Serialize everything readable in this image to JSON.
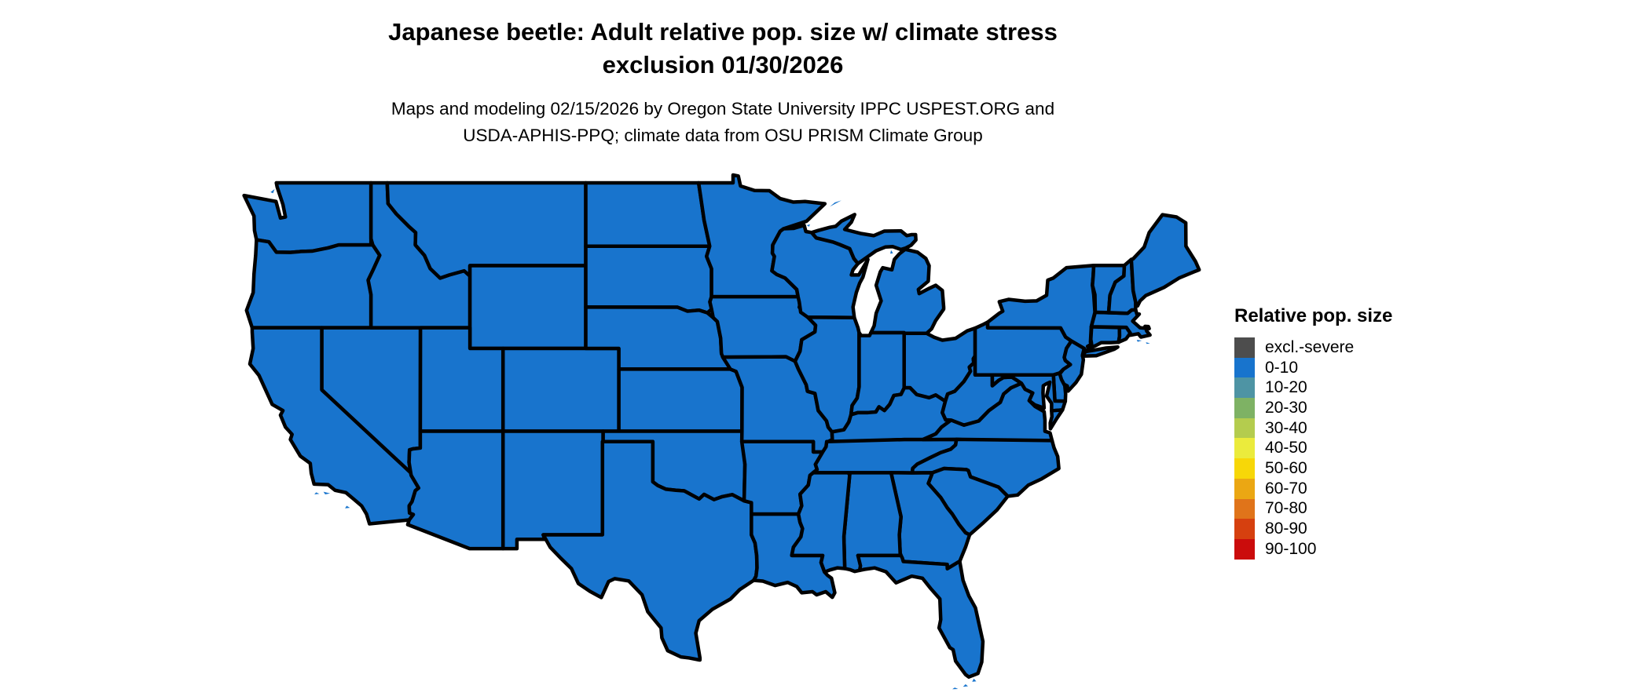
{
  "figure": {
    "title_line1": "Japanese beetle: Adult relative pop. size w/ climate stress",
    "title_line2": "exclusion 01/30/2026",
    "subtitle_line1": "Maps and modeling 02/15/2026 by Oregon State University IPPC USPEST.ORG and",
    "subtitle_line2": "USDA-APHIS-PPQ; climate data from OSU PRISM Climate Group"
  },
  "map": {
    "region": "contiguous-united-states",
    "fill_category": "0-10",
    "fill_color": "#1874CD",
    "border_color": "#000000",
    "background_color": "#FFFFFF"
  },
  "legend": {
    "title": "Relative pop. size",
    "items": [
      {
        "label": "excl.-severe",
        "color": "#4D4D4D"
      },
      {
        "label": "0-10",
        "color": "#1874CD"
      },
      {
        "label": "10-20",
        "color": "#4E94A4"
      },
      {
        "label": "20-30",
        "color": "#7EB264"
      },
      {
        "label": "30-40",
        "color": "#B4CC4E"
      },
      {
        "label": "40-50",
        "color": "#EBEB3C"
      },
      {
        "label": "50-60",
        "color": "#F7D708"
      },
      {
        "label": "60-70",
        "color": "#EBA713"
      },
      {
        "label": "70-80",
        "color": "#E0741A"
      },
      {
        "label": "80-90",
        "color": "#D6400F"
      },
      {
        "label": "90-100",
        "color": "#CB0C0C"
      }
    ]
  }
}
